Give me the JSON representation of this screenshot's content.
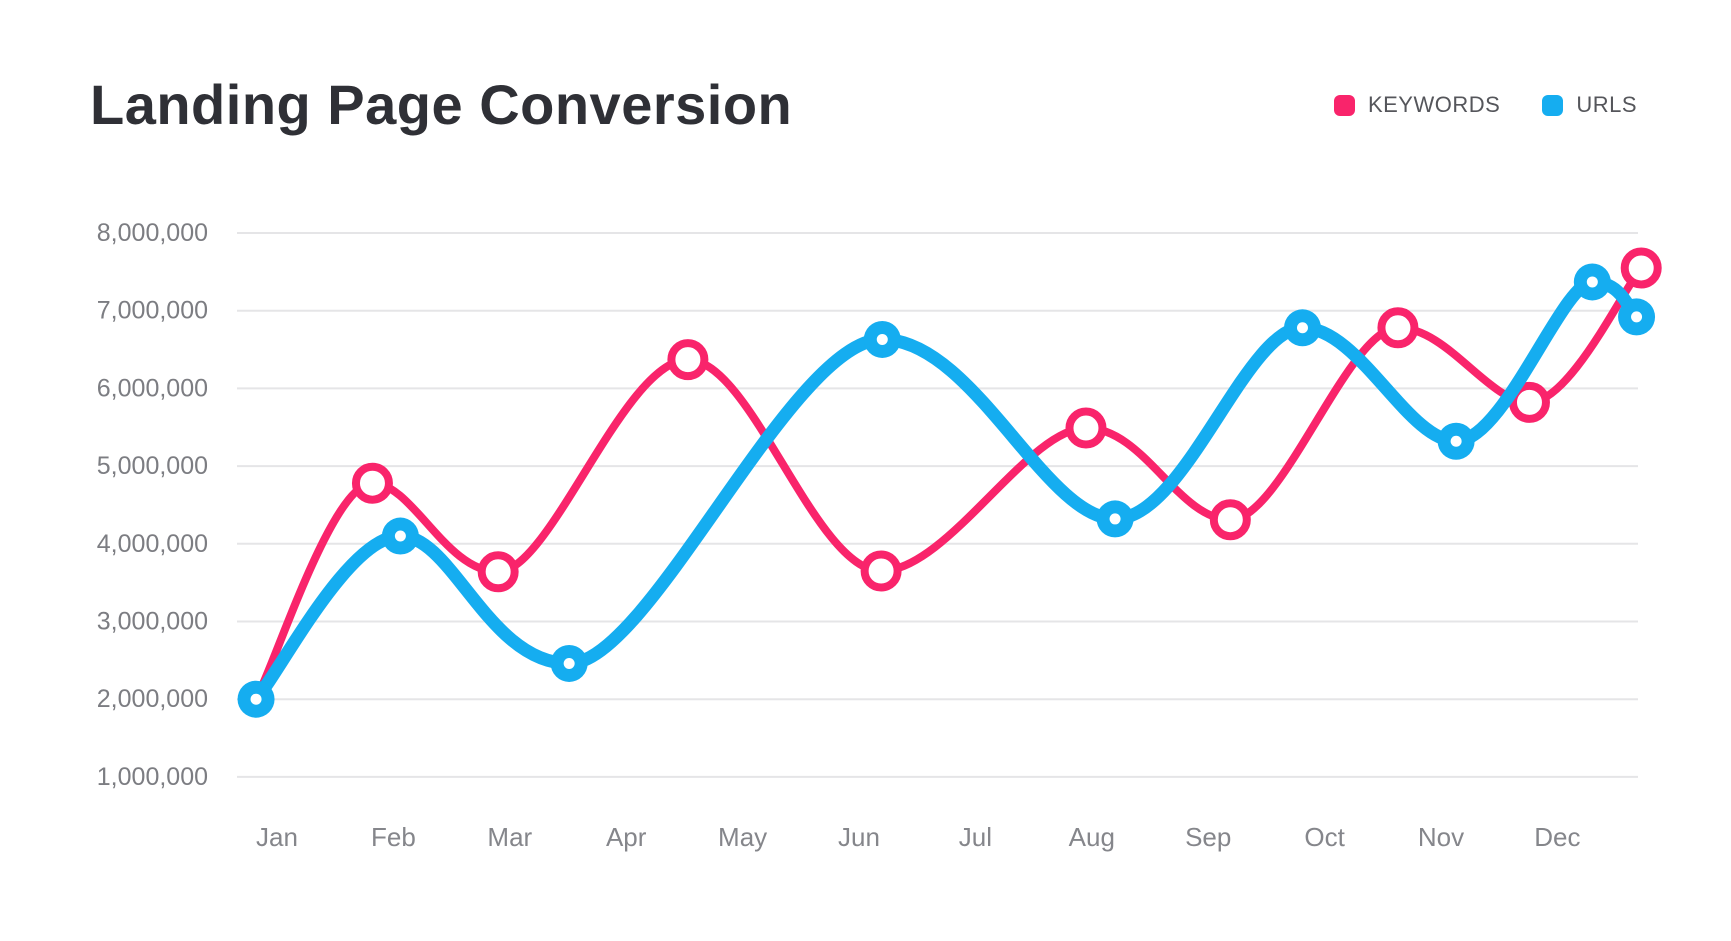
{
  "chart_data": {
    "type": "line",
    "title": "Landing Page Conversion",
    "categories": [
      "Jan",
      "Feb",
      "Mar",
      "Apr",
      "May",
      "Jun",
      "Jul",
      "Aug",
      "Sep",
      "Oct",
      "Nov",
      "Dec"
    ],
    "y_ticks": [
      {
        "value": 8000000,
        "label": "8,000,000"
      },
      {
        "value": 7000000,
        "label": "7,000,000"
      },
      {
        "value": 6000000,
        "label": "6,000,000"
      },
      {
        "value": 5000000,
        "label": "5,000,000"
      },
      {
        "value": 4000000,
        "label": "4,000,000"
      },
      {
        "value": 3000000,
        "label": "3,000,000"
      },
      {
        "value": 2000000,
        "label": "2,000,000"
      },
      {
        "value": 1000000,
        "label": "1,000,000"
      }
    ],
    "grid": "horizontal",
    "x_note": "x is month index, 0 = Jan; fractional x reflects the stylized placement of points in the figure",
    "legend": {
      "position": "top-right",
      "entries": [
        {
          "label": "KEYWORDS",
          "color": "#F9246B"
        },
        {
          "label": "URLS",
          "color": "#15ADF0"
        }
      ]
    },
    "series": [
      {
        "name": "KEYWORDS",
        "color": "#F9246B",
        "marker": "open-circle",
        "line_width": 8,
        "points": [
          {
            "x": -0.18,
            "value": 2000000,
            "marker": false
          },
          {
            "x": 0.82,
            "value": 4780000
          },
          {
            "x": 1.9,
            "value": 3640000
          },
          {
            "x": 3.53,
            "value": 6370000
          },
          {
            "x": 5.19,
            "value": 3650000
          },
          {
            "x": 6.95,
            "value": 5490000
          },
          {
            "x": 8.19,
            "value": 4310000
          },
          {
            "x": 9.63,
            "value": 6780000
          },
          {
            "x": 10.76,
            "value": 5820000
          },
          {
            "x": 11.72,
            "value": 7550000
          }
        ]
      },
      {
        "name": "URLS",
        "color": "#15ADF0",
        "marker": "filled-circle",
        "line_width": 13,
        "points": [
          {
            "x": -0.18,
            "value": 2000000
          },
          {
            "x": 1.06,
            "value": 4100000
          },
          {
            "x": 2.51,
            "value": 2460000
          },
          {
            "x": 5.2,
            "value": 6630000
          },
          {
            "x": 7.2,
            "value": 4320000
          },
          {
            "x": 8.81,
            "value": 6780000
          },
          {
            "x": 10.13,
            "value": 5320000
          },
          {
            "x": 11.3,
            "value": 7370000
          },
          {
            "x": 11.68,
            "value": 6920000
          }
        ]
      }
    ]
  }
}
